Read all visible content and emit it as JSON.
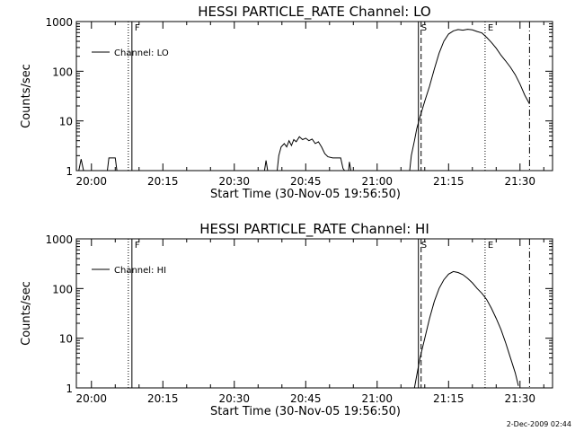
{
  "footer": {
    "timestamp": "2-Dec-2009 02:44"
  },
  "chart_data": [
    {
      "type": "line",
      "title": "HESSI PARTICLE_RATE Channel: LO",
      "xlabel": "Start Time (30-Nov-05 19:56:50)",
      "ylabel": "Counts/sec",
      "yscale": "log",
      "ylim": [
        1,
        1000
      ],
      "xlim": [
        "19:56:50",
        "21:36:50"
      ],
      "xticks": [
        "20:00",
        "20:15",
        "20:30",
        "20:45",
        "21:00",
        "21:15",
        "21:30"
      ],
      "yticks": [
        "1",
        "10",
        "100",
        "1000"
      ],
      "legend": {
        "label": "Channel: LO",
        "position": "top-left"
      },
      "markers": [
        {
          "label": "F",
          "time": "20:08:30",
          "style": "solid-dotted"
        },
        {
          "label": "S",
          "time": "21:08:40",
          "style": "solid-dashed"
        },
        {
          "label": "E",
          "time": "21:22:40",
          "style": "dotted"
        },
        {
          "label": "",
          "time": "21:32:00",
          "style": "dash-dot"
        }
      ],
      "series": [
        {
          "name": "Channel: LO",
          "segments": [
            [
              [
                "19:57:20",
                1
              ],
              [
                "19:57:50",
                1.7
              ],
              [
                "19:58:20",
                1
              ]
            ],
            [
              [
                "20:03:20",
                1
              ],
              [
                "20:03:40",
                1.8
              ],
              [
                "20:05:00",
                1.8
              ],
              [
                "20:05:20",
                1
              ]
            ],
            [
              [
                "20:36:20",
                1
              ],
              [
                "20:36:40",
                1.6
              ],
              [
                "20:37:00",
                1
              ]
            ],
            [
              [
                "20:39:00",
                1
              ],
              [
                "20:39:20",
                2
              ],
              [
                "20:39:50",
                3
              ],
              [
                "20:40:30",
                3.5
              ],
              [
                "20:41:00",
                3
              ],
              [
                "20:41:30",
                4
              ],
              [
                "20:42:00",
                3.2
              ],
              [
                "20:42:30",
                4.2
              ],
              [
                "20:43:00",
                3.8
              ],
              [
                "20:43:40",
                4.8
              ],
              [
                "20:44:20",
                4.2
              ],
              [
                "20:45:00",
                4.5
              ],
              [
                "20:45:40",
                4
              ],
              [
                "20:46:20",
                4.3
              ],
              [
                "20:47:00",
                3.5
              ],
              [
                "20:47:40",
                3.8
              ],
              [
                "20:48:20",
                3
              ],
              [
                "20:49:00",
                2.2
              ],
              [
                "20:49:40",
                1.9
              ],
              [
                "20:50:40",
                1.8
              ],
              [
                "20:51:40",
                1.8
              ],
              [
                "20:52:20",
                1.8
              ],
              [
                "20:52:50",
                1.1
              ],
              [
                "20:53:10",
                1
              ]
            ],
            [
              [
                "20:54:00",
                1
              ],
              [
                "20:54:10",
                1.5
              ],
              [
                "20:54:30",
                1
              ]
            ],
            [
              [
                "21:06:50",
                1
              ],
              [
                "21:07:10",
                2
              ],
              [
                "21:07:50",
                4
              ],
              [
                "21:08:20",
                7
              ],
              [
                "21:09:00",
                12
              ],
              [
                "21:10:00",
                25
              ],
              [
                "21:11:00",
                50
              ],
              [
                "21:12:00",
                110
              ],
              [
                "21:13:00",
                230
              ],
              [
                "21:14:00",
                400
              ],
              [
                "21:15:00",
                560
              ],
              [
                "21:16:00",
                650
              ],
              [
                "21:17:00",
                690
              ],
              [
                "21:18:00",
                670
              ],
              [
                "21:19:00",
                700
              ],
              [
                "21:20:00",
                680
              ],
              [
                "21:21:00",
                630
              ],
              [
                "21:22:00",
                590
              ],
              [
                "21:23:00",
                480
              ],
              [
                "21:24:00",
                380
              ],
              [
                "21:25:00",
                290
              ],
              [
                "21:26:00",
                210
              ],
              [
                "21:27:00",
                160
              ],
              [
                "21:28:00",
                120
              ],
              [
                "21:29:00",
                85
              ],
              [
                "21:30:00",
                55
              ],
              [
                "21:31:00",
                33
              ],
              [
                "21:32:00",
                22
              ]
            ]
          ]
        }
      ]
    },
    {
      "type": "line",
      "title": "HESSI PARTICLE_RATE Channel: HI",
      "xlabel": "Start Time (30-Nov-05 19:56:50)",
      "ylabel": "Counts/sec",
      "yscale": "log",
      "ylim": [
        1,
        1000
      ],
      "xlim": [
        "19:56:50",
        "21:36:50"
      ],
      "xticks": [
        "20:00",
        "20:15",
        "20:30",
        "20:45",
        "21:00",
        "21:15",
        "21:30"
      ],
      "yticks": [
        "1",
        "10",
        "100",
        "1000"
      ],
      "legend": {
        "label": "Channel: HI",
        "position": "top-left"
      },
      "markers": [
        {
          "label": "F",
          "time": "20:08:30",
          "style": "solid-dotted"
        },
        {
          "label": "S",
          "time": "21:08:40",
          "style": "solid-dashed"
        },
        {
          "label": "E",
          "time": "21:22:40",
          "style": "dotted"
        },
        {
          "label": "",
          "time": "21:32:00",
          "style": "dash-dot"
        }
      ],
      "series": [
        {
          "name": "Channel: HI",
          "segments": [
            [
              [
                "21:07:50",
                1
              ],
              [
                "21:08:20",
                1.8
              ],
              [
                "21:09:00",
                4
              ],
              [
                "21:10:00",
                10
              ],
              [
                "21:11:00",
                25
              ],
              [
                "21:12:00",
                55
              ],
              [
                "21:13:00",
                100
              ],
              [
                "21:14:00",
                150
              ],
              [
                "21:15:00",
                195
              ],
              [
                "21:16:00",
                220
              ],
              [
                "21:17:00",
                210
              ],
              [
                "21:18:00",
                190
              ],
              [
                "21:19:00",
                160
              ],
              [
                "21:20:00",
                130
              ],
              [
                "21:21:00",
                100
              ],
              [
                "21:22:00",
                80
              ],
              [
                "21:23:00",
                60
              ],
              [
                "21:24:00",
                40
              ],
              [
                "21:25:00",
                25
              ],
              [
                "21:26:00",
                15
              ],
              [
                "21:27:00",
                8
              ],
              [
                "21:28:00",
                4
              ],
              [
                "21:29:00",
                2
              ],
              [
                "21:29:40",
                1.1
              ]
            ]
          ]
        }
      ]
    }
  ]
}
